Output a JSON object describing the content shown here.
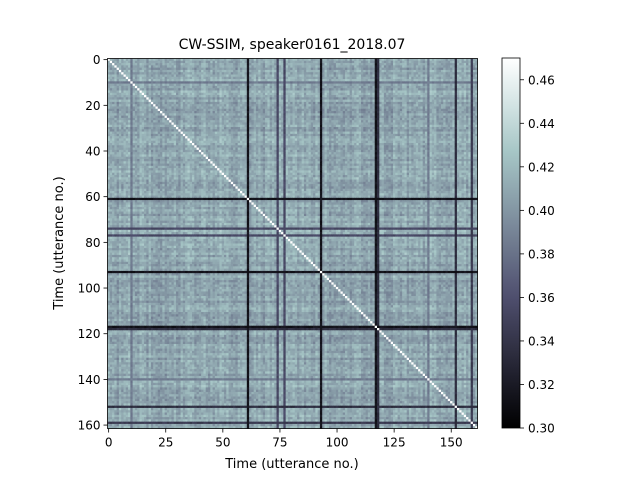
{
  "chart_data": {
    "type": "heatmap",
    "title": "CW-SSIM, speaker0161_2018.07",
    "xlabel": "Time (utterance no.)",
    "ylabel": "Time (utterance no.)",
    "n": 162,
    "x_ticks": [
      0,
      25,
      50,
      75,
      100,
      125,
      150
    ],
    "y_ticks": [
      0,
      20,
      40,
      60,
      80,
      100,
      120,
      140,
      160
    ],
    "colorbar": {
      "colormap": "bone",
      "vmin": 0.3,
      "vmax": 0.47,
      "ticks": [
        0.3,
        0.32,
        0.34,
        0.36,
        0.38,
        0.4,
        0.42,
        0.44,
        0.46
      ],
      "tick_labels": [
        "0.30",
        "0.32",
        "0.34",
        "0.36",
        "0.38",
        "0.40",
        "0.42",
        "0.44",
        "0.46"
      ]
    },
    "diagonal_value": 0.47,
    "typical_value": 0.41,
    "dark_rows_cols": [
      {
        "index": 61,
        "value": 0.31
      },
      {
        "index": 93,
        "value": 0.31
      },
      {
        "index": 117,
        "value": 0.31
      },
      {
        "index": 118,
        "value": 0.33
      },
      {
        "index": 152,
        "value": 0.33
      },
      {
        "index": 159,
        "value": 0.34
      },
      {
        "index": 74,
        "value": 0.35
      },
      {
        "index": 77,
        "value": 0.35
      },
      {
        "index": 10,
        "value": 0.38
      },
      {
        "index": 140,
        "value": 0.38
      }
    ]
  }
}
